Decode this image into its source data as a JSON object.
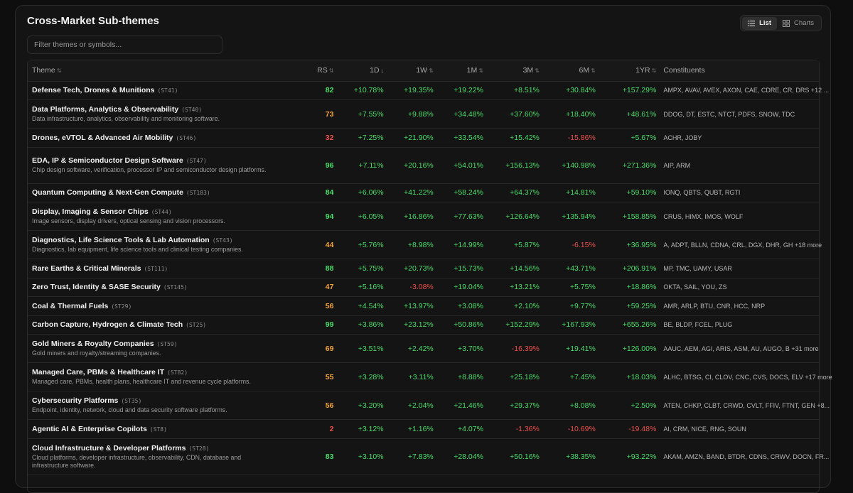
{
  "page": {
    "title": "Cross-Market Sub-themes"
  },
  "view_toggle": {
    "list_label": "List",
    "charts_label": "Charts"
  },
  "filter": {
    "placeholder": "Filter themes or symbols...",
    "value": ""
  },
  "colors": {
    "positive": "#4ade6a",
    "negative": "#f0524e",
    "rs_high": "#4ade6a",
    "rs_mid": "#f2a43a",
    "rs_low": "#f0524e"
  },
  "table": {
    "headers": {
      "theme": "Theme",
      "rs": "RS",
      "d1": "1D",
      "w1": "1W",
      "m1": "1M",
      "m3": "3M",
      "m6": "6M",
      "yr1": "1YR",
      "constituents": "Constituents"
    },
    "sorted_column": "1D",
    "rows": [
      {
        "name": "Defense Tech, Drones & Munitions",
        "code": "(ST41)",
        "desc": "",
        "rs": "82",
        "d1": "+10.78%",
        "w1": "+19.35%",
        "m1": "+19.22%",
        "m3": "+8.51%",
        "m6": "+30.84%",
        "yr1": "+157.29%",
        "constituents": "AMPX, AVAV, AVEX, AXON, CAE, CDRE, CR, DRS +12 ..."
      },
      {
        "name": "Data Platforms, Analytics & Observability",
        "code": "(ST40)",
        "desc": "Data infrastructure, analytics, observability and monitoring software.",
        "rs": "73",
        "d1": "+7.55%",
        "w1": "+9.88%",
        "m1": "+34.48%",
        "m3": "+37.60%",
        "m6": "+18.40%",
        "yr1": "+48.61%",
        "constituents": "DDOG, DT, ESTC, NTCT, PDFS, SNOW, TDC"
      },
      {
        "name": "Drones, eVTOL & Advanced Air Mobility",
        "code": "(ST46)",
        "desc": "",
        "rs": "32",
        "d1": "+7.25%",
        "w1": "+21.90%",
        "m1": "+33.54%",
        "m3": "+15.42%",
        "m6": "-15.86%",
        "yr1": "+5.67%",
        "constituents": "ACHR, JOBY"
      },
      {
        "name": "EDA, IP & Semiconductor Design Software",
        "code": "(ST47)",
        "desc": "Chip design software, verification, processor IP and semiconductor design platforms.",
        "rs": "96",
        "d1": "+7.11%",
        "w1": "+20.16%",
        "m1": "+54.01%",
        "m3": "+156.13%",
        "m6": "+140.98%",
        "yr1": "+271.36%",
        "constituents": "AIP, ARM"
      },
      {
        "name": "Quantum Computing & Next-Gen Compute",
        "code": "(ST183)",
        "desc": "",
        "rs": "84",
        "d1": "+6.06%",
        "w1": "+41.22%",
        "m1": "+58.24%",
        "m3": "+64.37%",
        "m6": "+14.81%",
        "yr1": "+59.10%",
        "constituents": "IONQ, QBTS, QUBT, RGTI"
      },
      {
        "name": "Display, Imaging & Sensor Chips",
        "code": "(ST44)",
        "desc": "Image sensors, display drivers, optical sensing and vision processors.",
        "rs": "94",
        "d1": "+6.05%",
        "w1": "+16.86%",
        "m1": "+77.63%",
        "m3": "+126.64%",
        "m6": "+135.94%",
        "yr1": "+158.85%",
        "constituents": "CRUS, HIMX, IMOS, WOLF"
      },
      {
        "name": "Diagnostics, Life Science Tools & Lab Automation",
        "code": "(ST43)",
        "desc": "Diagnostics, lab equipment, life science tools and clinical testing companies.",
        "rs": "44",
        "d1": "+5.76%",
        "w1": "+8.98%",
        "m1": "+14.99%",
        "m3": "+5.87%",
        "m6": "-6.15%",
        "yr1": "+36.95%",
        "constituents": "A, ADPT, BLLN, CDNA, CRL, DGX, DHR, GH +18 more"
      },
      {
        "name": "Rare Earths & Critical Minerals",
        "code": "(ST111)",
        "desc": "",
        "rs": "88",
        "d1": "+5.75%",
        "w1": "+20.73%",
        "m1": "+15.73%",
        "m3": "+14.56%",
        "m6": "+43.71%",
        "yr1": "+206.91%",
        "constituents": "MP, TMC, UAMY, USAR"
      },
      {
        "name": "Zero Trust, Identity & SASE Security",
        "code": "(ST145)",
        "desc": "",
        "rs": "47",
        "d1": "+5.16%",
        "w1": "-3.08%",
        "m1": "+19.04%",
        "m3": "+13.21%",
        "m6": "+5.75%",
        "yr1": "+18.86%",
        "constituents": "OKTA, SAIL, YOU, ZS"
      },
      {
        "name": "Coal & Thermal Fuels",
        "code": "(ST29)",
        "desc": "",
        "rs": "56",
        "d1": "+4.54%",
        "w1": "+13.97%",
        "m1": "+3.08%",
        "m3": "+2.10%",
        "m6": "+9.77%",
        "yr1": "+59.25%",
        "constituents": "AMR, ARLP, BTU, CNR, HCC, NRP"
      },
      {
        "name": "Carbon Capture, Hydrogen & Climate Tech",
        "code": "(ST25)",
        "desc": "",
        "rs": "99",
        "d1": "+3.86%",
        "w1": "+23.12%",
        "m1": "+50.86%",
        "m3": "+152.29%",
        "m6": "+167.93%",
        "yr1": "+655.26%",
        "constituents": "BE, BLDP, FCEL, PLUG"
      },
      {
        "name": "Gold Miners & Royalty Companies",
        "code": "(ST59)",
        "desc": "Gold miners and royalty/streaming companies.",
        "rs": "69",
        "d1": "+3.51%",
        "w1": "+2.42%",
        "m1": "+3.70%",
        "m3": "-16.39%",
        "m6": "+19.41%",
        "yr1": "+126.00%",
        "constituents": "AAUC, AEM, AGI, ARIS, ASM, AU, AUGO, B +31 more"
      },
      {
        "name": "Managed Care, PBMs & Healthcare IT",
        "code": "(ST82)",
        "desc": "Managed care, PBMs, health plans, healthcare IT and revenue cycle platforms.",
        "rs": "55",
        "d1": "+3.28%",
        "w1": "+3.11%",
        "m1": "+8.88%",
        "m3": "+25.18%",
        "m6": "+7.45%",
        "yr1": "+18.03%",
        "constituents": "ALHC, BTSG, CI, CLOV, CNC, CVS, DOCS, ELV +17 more"
      },
      {
        "name": "Cybersecurity Platforms",
        "code": "(ST35)",
        "desc": "Endpoint, identity, network, cloud and data security software platforms.",
        "rs": "56",
        "d1": "+3.20%",
        "w1": "+2.04%",
        "m1": "+21.46%",
        "m3": "+29.37%",
        "m6": "+8.08%",
        "yr1": "+2.50%",
        "constituents": "ATEN, CHKP, CLBT, CRWD, CVLT, FFIV, FTNT, GEN +8..."
      },
      {
        "name": "Agentic AI & Enterprise Copilots",
        "code": "(ST8)",
        "desc": "",
        "rs": "2",
        "d1": "+3.12%",
        "w1": "+1.16%",
        "m1": "+4.07%",
        "m3": "-1.36%",
        "m6": "-10.69%",
        "yr1": "-19.48%",
        "constituents": "AI, CRM, NICE, RNG, SOUN"
      },
      {
        "name": "Cloud Infrastructure & Developer Platforms",
        "code": "(ST28)",
        "desc": "Cloud platforms, developer infrastructure, observability, CDN, database and infrastructure software.",
        "rs": "83",
        "d1": "+3.10%",
        "w1": "+7.83%",
        "m1": "+28.04%",
        "m3": "+50.16%",
        "m6": "+38.35%",
        "yr1": "+93.22%",
        "constituents": "AKAM, AMZN, BAND, BTDR, CDNS, CRWV, DOCN, FR..."
      }
    ]
  }
}
